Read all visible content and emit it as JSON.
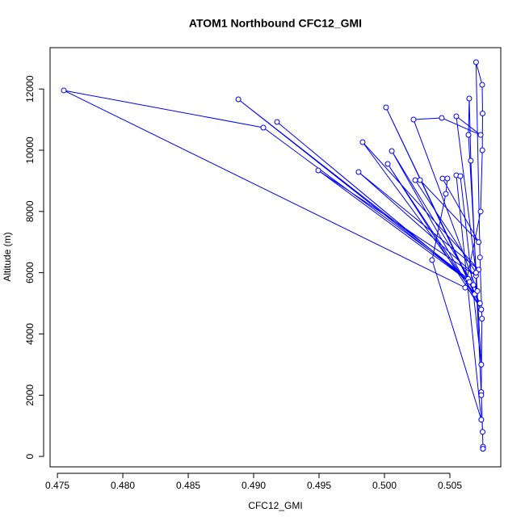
{
  "chart_data": {
    "type": "line",
    "title": "ATOM1 Northbound CFC12_GMI",
    "x_label": "CFC12_GMI",
    "y_label": "Altitude (m)",
    "color": "#0000ff",
    "markers": true,
    "x": [
      0.50753,
      0.5075,
      0.5074,
      0.50745,
      0.5073,
      0.507,
      0.50747,
      0.5075,
      0.50748,
      0.50735,
      0.50617,
      0.47549,
      0.49074,
      0.5064,
      0.48883,
      0.5068,
      0.49179,
      0.5065,
      0.49494,
      0.507,
      0.49802,
      0.5072,
      0.49833,
      0.5069,
      0.50012,
      0.5073,
      0.50025,
      0.5074,
      0.50056,
      0.5071,
      0.50222,
      0.50438,
      0.50735,
      0.50549,
      0.507,
      0.50235,
      0.50272,
      0.5072,
      0.50444,
      0.50481,
      0.50469,
      0.50364,
      0.5074,
      0.50549,
      0.5058,
      0.5074,
      0.50642,
      0.50648,
      0.5066,
      0.5074,
      0.50753,
      0.50753
    ],
    "values": [
      250,
      800,
      2100,
      4500,
      6500,
      12876,
      12137,
      11200,
      10000,
      8000,
      5514,
      11953,
      10739,
      5800,
      11662,
      5600,
      10923,
      5700,
      9340,
      5900,
      9288,
      6100,
      10264,
      5300,
      11398,
      5000,
      9551,
      4800,
      9974,
      5400,
      11003,
      11055,
      10500,
      11108,
      6000,
      9024,
      9024,
      7000,
      9077,
      9077,
      8575,
      6412,
      1200,
      9182,
      9156,
      3000,
      10501,
      11689,
      9657,
      2000,
      317,
      250
    ],
    "xlim": [
      0.47444,
      0.50889
    ],
    "ylim": [
      -340,
      13350
    ],
    "xticks": [
      0.475,
      {
        "value": 0.48,
        "label": "0.480"
      },
      0.485,
      {
        "value": 0.49,
        "label": "0.490"
      },
      0.495,
      {
        "value": 0.5,
        "label": "0.500"
      },
      0.505
    ],
    "yticks": [
      0,
      2000,
      4000,
      6000,
      8000,
      10000,
      12000
    ]
  }
}
